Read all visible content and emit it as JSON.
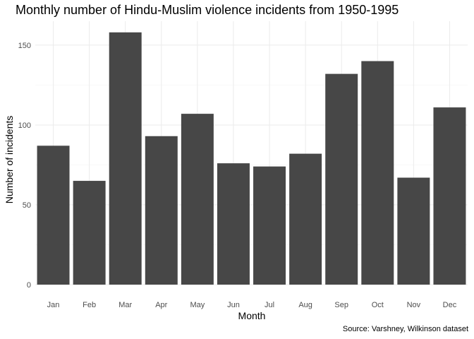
{
  "chart_data": {
    "type": "bar",
    "title": "Monthly number of Hindu-Muslim violence incidents from 1950-1995",
    "caption": "Source: Varshney, Wilkinson dataset",
    "xlabel": "Month",
    "ylabel": "Number of incidents",
    "categories": [
      "Jan",
      "Feb",
      "Mar",
      "Apr",
      "May",
      "Jun",
      "Jul",
      "Aug",
      "Sep",
      "Oct",
      "Nov",
      "Dec"
    ],
    "values": [
      87,
      65,
      158,
      93,
      107,
      76,
      74,
      82,
      132,
      140,
      67,
      111
    ],
    "ylim": [
      0,
      165
    ],
    "yticks": [
      0,
      50,
      100,
      150
    ],
    "ytick_labels": [
      "0",
      "50",
      "100",
      "150"
    ],
    "grid": true,
    "bar_color": "#474747",
    "grid_color": "#ebebeb"
  }
}
